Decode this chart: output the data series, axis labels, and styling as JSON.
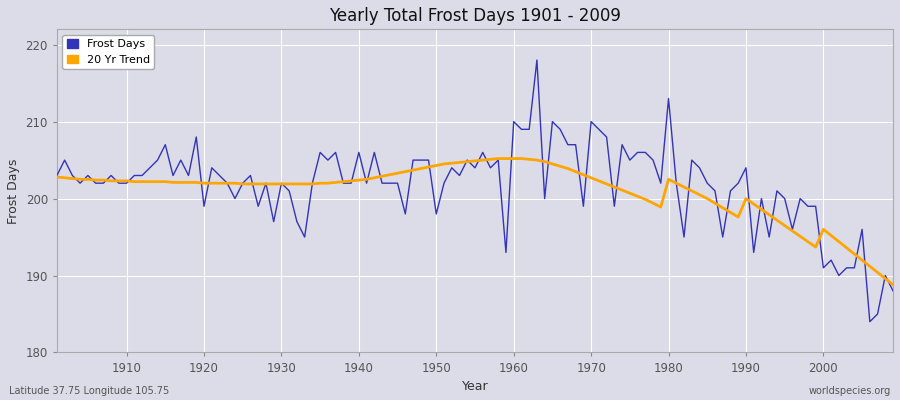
{
  "title": "Yearly Total Frost Days 1901 - 2009",
  "xlabel": "Year",
  "ylabel": "Frost Days",
  "lat_lon_label": "Latitude 37.75 Longitude 105.75",
  "source_label": "worldspecies.org",
  "ylim": [
    180,
    222
  ],
  "yticks": [
    180,
    190,
    200,
    210,
    220
  ],
  "xlim": [
    1901,
    2009
  ],
  "xticks": [
    1910,
    1920,
    1930,
    1940,
    1950,
    1960,
    1970,
    1980,
    1990,
    2000
  ],
  "frost_line_color": "#3333bb",
  "trend_line_color": "#FFA500",
  "plot_bg_color": "#dcdce8",
  "outer_bg_color": "#dcdce8",
  "grid_color": "#ffffff",
  "years": [
    1901,
    1902,
    1903,
    1904,
    1905,
    1906,
    1907,
    1908,
    1909,
    1910,
    1911,
    1912,
    1913,
    1914,
    1915,
    1916,
    1917,
    1918,
    1919,
    1920,
    1921,
    1922,
    1923,
    1924,
    1925,
    1926,
    1927,
    1928,
    1929,
    1930,
    1931,
    1932,
    1933,
    1934,
    1935,
    1936,
    1937,
    1938,
    1939,
    1940,
    1941,
    1942,
    1943,
    1944,
    1945,
    1946,
    1947,
    1948,
    1949,
    1950,
    1951,
    1952,
    1953,
    1954,
    1955,
    1956,
    1957,
    1958,
    1959,
    1960,
    1961,
    1962,
    1963,
    1964,
    1965,
    1966,
    1967,
    1968,
    1969,
    1970,
    1971,
    1972,
    1973,
    1974,
    1975,
    1976,
    1977,
    1978,
    1979,
    1980,
    1981,
    1982,
    1983,
    1984,
    1985,
    1986,
    1987,
    1988,
    1989,
    1990,
    1991,
    1992,
    1993,
    1994,
    1995,
    1996,
    1997,
    1998,
    1999,
    2000,
    2001,
    2002,
    2003,
    2004,
    2005,
    2006,
    2007,
    2008,
    2009
  ],
  "frost_days": [
    203,
    205,
    203,
    202,
    203,
    202,
    202,
    203,
    202,
    202,
    203,
    203,
    204,
    205,
    207,
    203,
    205,
    203,
    208,
    199,
    204,
    203,
    202,
    200,
    202,
    203,
    199,
    202,
    197,
    202,
    201,
    197,
    195,
    202,
    206,
    205,
    206,
    202,
    202,
    206,
    202,
    206,
    202,
    202,
    202,
    198,
    205,
    205,
    205,
    198,
    202,
    204,
    203,
    205,
    204,
    206,
    204,
    205,
    193,
    210,
    209,
    209,
    218,
    200,
    210,
    209,
    207,
    207,
    199,
    210,
    209,
    208,
    199,
    207,
    205,
    206,
    206,
    205,
    202,
    213,
    202,
    195,
    205,
    204,
    202,
    201,
    195,
    201,
    202,
    204,
    193,
    200,
    195,
    201,
    200,
    196,
    200,
    199,
    199,
    191,
    192,
    190,
    191,
    191,
    196,
    184,
    185,
    190,
    188
  ],
  "trend_years": [
    1901,
    1902,
    1903,
    1904,
    1905,
    1906,
    1907,
    1908,
    1909,
    1910,
    1911,
    1912,
    1913,
    1914,
    1915,
    1916,
    1917,
    1918,
    1919,
    1920,
    1921,
    1922,
    1923,
    1924,
    1925,
    1926,
    1927,
    1928,
    1929,
    1930,
    1931,
    1932,
    1933,
    1934,
    1935,
    1936,
    1937,
    1938,
    1939,
    1940,
    1941,
    1942,
    1943,
    1944,
    1945,
    1946,
    1947,
    1948,
    1949,
    1950,
    1951,
    1952,
    1953,
    1954,
    1955,
    1956,
    1957,
    1958,
    1959,
    1960,
    1961,
    1962,
    1963,
    1964,
    1965,
    1966,
    1967,
    1968,
    1969,
    1970,
    1971,
    1972,
    1973,
    1974,
    1975,
    1976,
    1977,
    1978,
    1979,
    1980,
    1981,
    1982,
    1983,
    1984,
    1985,
    1986,
    1987,
    1988,
    1989,
    1990,
    1991,
    1992,
    1993,
    1994,
    1995,
    1996,
    1997,
    1998,
    1999,
    2000,
    2001,
    2002,
    2003,
    2004,
    2005,
    2006,
    2007,
    2008,
    2009
  ],
  "trend_values": [
    202.8,
    202.7,
    202.6,
    202.5,
    202.5,
    202.4,
    202.4,
    202.3,
    202.3,
    202.3,
    202.2,
    202.2,
    202.2,
    202.2,
    202.2,
    202.1,
    202.1,
    202.1,
    202.1,
    202.0,
    202.0,
    202.0,
    202.0,
    202.0,
    201.9,
    201.9,
    201.9,
    201.9,
    201.9,
    201.9,
    201.9,
    201.9,
    201.9,
    201.9,
    202.0,
    202.0,
    202.1,
    202.2,
    202.3,
    202.4,
    202.5,
    202.7,
    202.9,
    203.1,
    203.3,
    203.5,
    203.7,
    203.9,
    204.1,
    204.3,
    204.5,
    204.6,
    204.7,
    204.8,
    204.9,
    205.0,
    205.1,
    205.2,
    205.2,
    205.2,
    205.2,
    205.1,
    205.0,
    204.8,
    204.5,
    204.2,
    203.9,
    203.5,
    203.1,
    202.7,
    202.3,
    201.9,
    201.5,
    201.1,
    200.7,
    200.3,
    199.9,
    199.4,
    198.9,
    202.5,
    202.0,
    201.5,
    201.0,
    200.5,
    200.0,
    199.4,
    198.8,
    198.2,
    197.6,
    200.0,
    199.3,
    198.6,
    197.9,
    197.2,
    196.5,
    195.8,
    195.1,
    194.4,
    193.7,
    196.0,
    195.2,
    194.4,
    193.6,
    192.8,
    192.0,
    191.2,
    190.4,
    189.6,
    188.8
  ]
}
